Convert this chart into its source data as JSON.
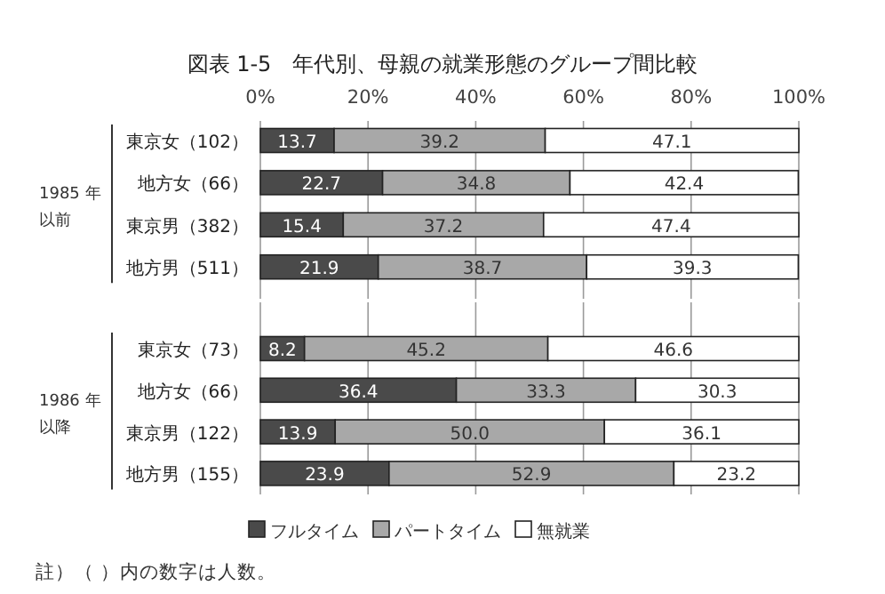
{
  "chart_data": [
    {
      "type": "bar",
      "orientation": "horizontal",
      "stacked": true,
      "title": "図表 1-5　年代別、母親の就業形態のグループ間比較",
      "categories": [
        "東京女（102）",
        "地方女（66）",
        "東京男（382）",
        "地方男（511）"
      ],
      "xlim": [
        0,
        100
      ],
      "xticks": [
        {
          "value": 0,
          "label": "0%"
        },
        {
          "value": 20,
          "label": "20%"
        },
        {
          "value": 40,
          "label": "40%"
        },
        {
          "value": 60,
          "label": "60%"
        },
        {
          "value": 80,
          "label": "80%"
        },
        {
          "value": 100,
          "label": "100%"
        }
      ],
      "grid": "x",
      "series": [
        {
          "color": "#4a4a4a",
          "values": [
            13.7,
            22.7,
            15.4,
            21.9
          ],
          "value_labels": [
            "13.7",
            "22.7",
            "15.4",
            "21.9"
          ]
        },
        {
          "color": "#a8a8a8",
          "values": [
            39.2,
            34.8,
            37.2,
            38.7
          ],
          "value_labels": [
            "39.2",
            "34.8",
            "37.2",
            "38.7"
          ]
        },
        {
          "color": "#ffffff",
          "values": [
            47.1,
            42.4,
            47.4,
            39.3
          ],
          "value_labels": [
            "47.1",
            "42.4",
            "47.4",
            "39.3"
          ]
        }
      ],
      "annotations": [
        "1985 年",
        "以前"
      ]
    },
    {
      "type": "bar",
      "orientation": "horizontal",
      "stacked": true,
      "categories": [
        "東京女（73）",
        "地方女（66）",
        "東京男（122）",
        "地方男（155）"
      ],
      "xlim": [
        0,
        100
      ],
      "xticks": [
        0,
        20,
        40,
        60,
        80,
        100
      ],
      "tick_labels": "y",
      "grid": "x",
      "legend": "bottom left",
      "series": [
        {
          "name": "フルタイム",
          "color": "#4a4a4a",
          "values": [
            8.2,
            36.4,
            13.9,
            23.9
          ],
          "value_labels": [
            "8.2",
            "36.4",
            "13.9",
            "23.9"
          ]
        },
        {
          "name": "パートタイム",
          "color": "#a8a8a8",
          "values": [
            45.2,
            33.3,
            50.0,
            52.9
          ],
          "value_labels": [
            "45.2",
            "33.3",
            "50.0",
            "52.9"
          ]
        },
        {
          "name": "無就業",
          "color": "#ffffff",
          "values": [
            46.6,
            30.3,
            36.1,
            23.2
          ],
          "value_labels": [
            "46.6",
            "30.3",
            "36.1",
            "23.2"
          ]
        }
      ],
      "annotations": [
        "1986 年",
        "以降",
        "註）（ ）内の数字は人数。"
      ]
    }
  ]
}
